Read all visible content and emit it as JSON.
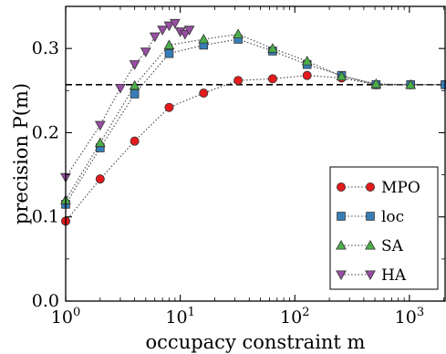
{
  "chart_data": {
    "type": "scatter",
    "xlabel": "occupacy constraint m",
    "ylabel": "precision P(m)",
    "xscale": "log",
    "xlim": [
      1,
      2048
    ],
    "ylim": [
      0.0,
      0.35
    ],
    "x_ticks": [
      {
        "value": 1,
        "base": "10",
        "exp": "0"
      },
      {
        "value": 10,
        "base": "10",
        "exp": "1"
      },
      {
        "value": 100,
        "base": "10",
        "exp": "2"
      },
      {
        "value": 1000,
        "base": "10",
        "exp": "3"
      }
    ],
    "y_ticks": [
      {
        "value": 0.0,
        "label": "0.0"
      },
      {
        "value": 0.1,
        "label": "0.1"
      },
      {
        "value": 0.2,
        "label": "0.2"
      },
      {
        "value": 0.3,
        "label": "0.3"
      }
    ],
    "reference_line": {
      "y": 0.257,
      "style": "dashed"
    },
    "legend_position": "lower-right",
    "series": [
      {
        "name": "MPO",
        "marker": "circle",
        "color": "#e41a1c",
        "x": [
          1,
          2,
          4,
          8,
          16,
          32,
          64,
          128,
          256,
          512,
          1024,
          2048
        ],
        "y": [
          0.095,
          0.145,
          0.19,
          0.23,
          0.247,
          0.262,
          0.264,
          0.268,
          0.265,
          0.257,
          0.257,
          0.257
        ]
      },
      {
        "name": "loc",
        "marker": "square",
        "color": "#377eb8",
        "x": [
          1,
          2,
          4,
          8,
          16,
          32,
          64,
          128,
          256,
          512,
          1024,
          2048
        ],
        "y": [
          0.115,
          0.182,
          0.246,
          0.294,
          0.304,
          0.311,
          0.297,
          0.281,
          0.268,
          0.257,
          0.257,
          0.257
        ]
      },
      {
        "name": "SA",
        "marker": "triangle-up",
        "color": "#4daf4a",
        "x": [
          1,
          2,
          4,
          8,
          16,
          32,
          64,
          128,
          256,
          512,
          1024
        ],
        "y": [
          0.12,
          0.188,
          0.256,
          0.304,
          0.311,
          0.317,
          0.3,
          0.285,
          0.267,
          0.258,
          0.257
        ]
      },
      {
        "name": "HA",
        "marker": "triangle-down",
        "color": "#984ea3",
        "x": [
          1,
          2,
          3,
          4,
          5,
          6,
          7,
          8,
          9,
          10,
          11,
          12
        ],
        "y": [
          0.147,
          0.209,
          0.253,
          0.281,
          0.296,
          0.314,
          0.322,
          0.327,
          0.33,
          0.32,
          0.317,
          0.322
        ]
      }
    ]
  }
}
